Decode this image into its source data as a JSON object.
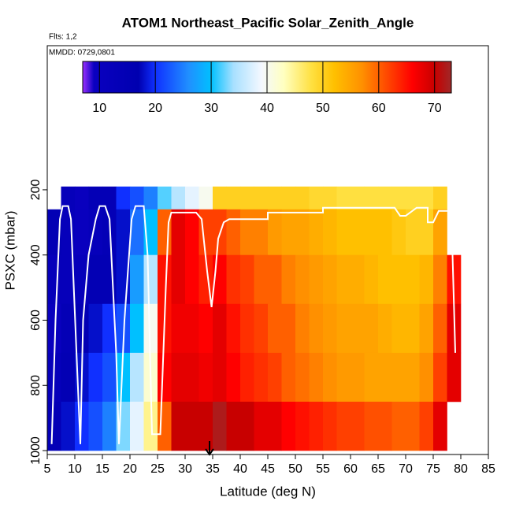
{
  "chart_data": {
    "type": "heatmap",
    "title": "ATOM1 Northeast_Pacific Solar_Zenith_Angle",
    "flights_label": "Flts: 1,2",
    "dates_label": "MMDD: 0729,0801",
    "xlabel": "Latitude (deg N)",
    "ylabel": "PSXC (mbar)",
    "xlim": [
      5,
      85
    ],
    "ylim": [
      1012,
      -242
    ],
    "xticks": [
      5,
      10,
      15,
      20,
      25,
      30,
      35,
      40,
      45,
      50,
      55,
      60,
      65,
      70,
      75,
      80,
      85
    ],
    "yticks": [
      200,
      400,
      600,
      800,
      1000
    ],
    "colorbar_lim": [
      7,
      73
    ],
    "colorbar_ticks": [
      10,
      20,
      30,
      40,
      50,
      60,
      70
    ],
    "colormap": [
      [
        7,
        "#9b30ff"
      ],
      [
        9,
        "#0a00c0"
      ],
      [
        17,
        "#0000b0"
      ],
      [
        20,
        "#1030ff"
      ],
      [
        26,
        "#2090ff"
      ],
      [
        30,
        "#00c0ff"
      ],
      [
        34,
        "#a8e0ff"
      ],
      [
        39,
        "#f4f8ff"
      ],
      [
        43,
        "#ffffc0"
      ],
      [
        48,
        "#ffe040"
      ],
      [
        52,
        "#ffc000"
      ],
      [
        57,
        "#ff9000"
      ],
      [
        62,
        "#ff4000"
      ],
      [
        66,
        "#ff0000"
      ],
      [
        70,
        "#c80000"
      ],
      [
        73,
        "#a02828"
      ]
    ],
    "x_edges": [
      5,
      7.5,
      10,
      12.5,
      15,
      17.5,
      20,
      22.5,
      25,
      27.5,
      30,
      32.5,
      35,
      37.5,
      40,
      42.5,
      45,
      47.5,
      50,
      52.5,
      55,
      57.5,
      60,
      62.5,
      65,
      67.5,
      70,
      72.5,
      75,
      77.5,
      80
    ],
    "p_edges": [
      190,
      260,
      400,
      550,
      700,
      850,
      1000
    ],
    "values": [
      [
        null,
        12,
        10,
        14,
        14,
        20,
        22,
        25,
        32,
        35,
        38,
        40,
        50,
        50,
        50,
        50,
        50,
        50,
        50,
        49,
        49,
        48,
        48,
        48,
        48,
        48,
        48,
        48,
        50,
        null
      ],
      [
        15,
        12,
        10,
        12,
        14,
        18,
        24,
        30,
        60,
        68,
        66,
        62,
        62,
        60,
        58,
        58,
        56,
        55,
        55,
        54,
        53,
        52,
        52,
        52,
        52,
        51,
        50,
        50,
        55,
        null
      ],
      [
        12,
        12,
        12,
        15,
        15,
        18,
        27,
        35,
        65,
        68,
        66,
        64,
        66,
        63,
        62,
        60,
        60,
        58,
        57,
        56,
        55,
        54,
        54,
        53,
        52,
        52,
        52,
        53,
        58,
        65
      ],
      [
        10,
        14,
        15,
        18,
        20,
        22,
        30,
        40,
        65,
        67,
        67,
        66,
        68,
        65,
        63,
        62,
        60,
        60,
        58,
        57,
        56,
        55,
        55,
        55,
        54,
        53,
        53,
        55,
        60,
        68
      ],
      [
        12,
        15,
        18,
        20,
        22,
        30,
        35,
        42,
        66,
        68,
        68,
        67,
        68,
        66,
        64,
        63,
        62,
        60,
        59,
        58,
        57,
        56,
        56,
        55,
        55,
        55,
        55,
        57,
        62,
        68
      ],
      [
        14,
        18,
        20,
        22,
        25,
        33,
        38,
        45,
        60,
        70,
        70,
        70,
        72,
        70,
        70,
        68,
        68,
        66,
        65,
        64,
        63,
        62,
        62,
        61,
        61,
        60,
        60,
        62,
        68,
        null
      ]
    ],
    "track": {
      "lat": [
        5.8,
        6.5,
        7.3,
        7.8,
        8.8,
        9.3,
        10.3,
        11,
        11.5,
        12.5,
        13.8,
        14.5,
        15.5,
        16.3,
        17.5,
        18,
        19,
        20.3,
        21,
        22.5,
        23.2,
        24,
        25.5,
        26.5,
        27,
        27.5,
        29,
        32,
        33,
        34,
        34.8,
        35.5,
        36,
        37,
        38,
        45,
        45,
        55,
        55,
        68,
        69,
        70,
        72,
        74,
        74,
        75,
        76,
        78,
        78.5,
        79
      ],
      "p": [
        980,
        600,
        290,
        250,
        250,
        290,
        700,
        980,
        600,
        400,
        290,
        250,
        250,
        290,
        700,
        980,
        600,
        290,
        250,
        250,
        400,
        950,
        950,
        500,
        300,
        270,
        270,
        270,
        290,
        450,
        560,
        450,
        350,
        300,
        290,
        290,
        270,
        270,
        255,
        255,
        280,
        280,
        255,
        255,
        300,
        300,
        265,
        265,
        400,
        700
      ]
    }
  }
}
